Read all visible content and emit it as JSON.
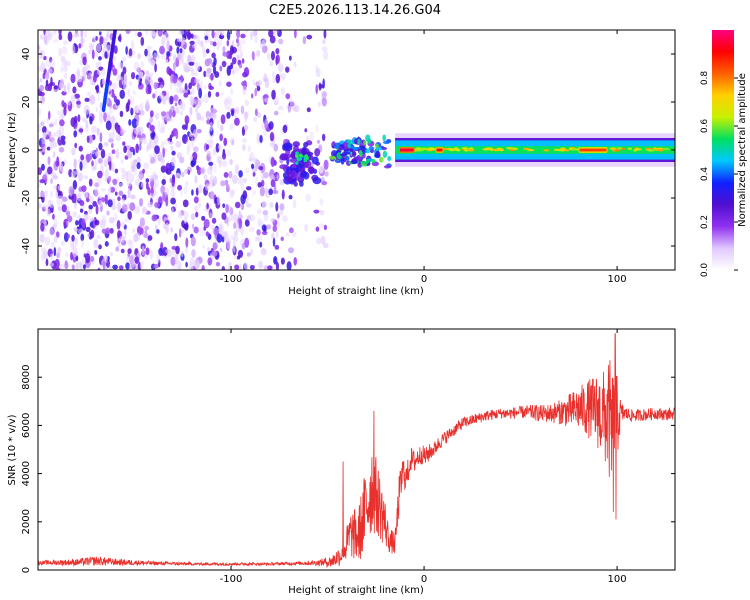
{
  "figure": {
    "title": "C2E5.2026.113.14.26.G04"
  },
  "chart_data": [
    {
      "type": "heatmap",
      "id": "spectrogram",
      "xlabel": "Height of straight line (km)",
      "ylabel": "Frequency (Hz)",
      "xlim": [
        -200,
        130
      ],
      "ylim": [
        -50,
        50
      ],
      "xticks": [
        -100,
        0,
        100
      ],
      "xtick_labels": [
        "-100",
        "0",
        "100"
      ],
      "yticks": [
        -40,
        -20,
        0,
        20,
        40
      ],
      "ytick_labels": [
        "-40",
        "-20",
        "0",
        "20",
        "40"
      ],
      "colorbar": {
        "label": "Normalized spectral amplitude",
        "range": [
          0,
          1
        ],
        "ticks": [
          0.0,
          0.2,
          0.4,
          0.6,
          0.8
        ],
        "tick_labels": [
          "0.0",
          "0.2",
          "0.4",
          "0.6",
          "0.8"
        ],
        "colors": [
          "#ffffff",
          "#e0c8ff",
          "#9030f0",
          "#5010d0",
          "#1020ff",
          "#00c8ff",
          "#00e060",
          "#c8f000",
          "#ffd000",
          "#ff6000",
          "#ff0000",
          "#ff0080"
        ]
      },
      "regions": [
        {
          "name": "noise-scatter",
          "x_range": [
            -200,
            -50
          ],
          "freq_range": [
            -50,
            50
          ],
          "amplitude": 0.15
        },
        {
          "name": "noise-gap",
          "x_range": [
            -65,
            -56
          ],
          "freq_range": [
            -50,
            50
          ],
          "amplitude": 0.02
        },
        {
          "name": "streak",
          "x_range": [
            -166,
            -160
          ],
          "freq_range": [
            17,
            50
          ],
          "amplitude": 0.3
        },
        {
          "name": "onset-blob",
          "x_range": [
            -73,
            -55
          ],
          "freq_range": [
            -15,
            3
          ],
          "amplitude": 0.35
        },
        {
          "name": "onset-cluster",
          "x_range": [
            -48,
            -18
          ],
          "freq_range": [
            -6,
            10
          ],
          "amplitude": 0.45
        },
        {
          "name": "carrier-band",
          "x_range": [
            -15,
            130
          ],
          "freq_range": [
            -4,
            4
          ],
          "amplitude": 0.55
        },
        {
          "name": "carrier-peak-1",
          "x_range": [
            -13,
            -5
          ],
          "freq_range": [
            -1,
            1
          ],
          "amplitude": 0.95
        },
        {
          "name": "carrier-peak-2",
          "x_range": [
            6,
            10
          ],
          "freq_range": [
            -1,
            1
          ],
          "amplitude": 0.9
        },
        {
          "name": "carrier-peak-3",
          "x_range": [
            80,
            95
          ],
          "freq_range": [
            -1,
            1
          ],
          "amplitude": 0.85
        }
      ]
    },
    {
      "type": "line",
      "id": "snr",
      "xlabel": "Height of straight line (km)",
      "ylabel": "SNR (10 * v/v)",
      "xlim": [
        -200,
        130
      ],
      "ylim": [
        0,
        10000
      ],
      "xticks": [
        -100,
        0,
        100
      ],
      "xtick_labels": [
        "-100",
        "0",
        "100"
      ],
      "yticks": [
        0,
        2000,
        4000,
        6000,
        8000
      ],
      "ytick_labels": [
        "0",
        "2000",
        "4000",
        "6000",
        "8000"
      ],
      "color": "#e8302c",
      "series": [
        {
          "name": "SNR",
          "x": [
            -200,
            -180,
            -170,
            -160,
            -140,
            -120,
            -100,
            -80,
            -65,
            -55,
            -48,
            -42,
            -38,
            -34,
            -30,
            -27,
            -24,
            -21,
            -18,
            -15,
            -13,
            -11,
            -9,
            -7,
            -5,
            -3,
            -1,
            1,
            3,
            5,
            8,
            11,
            14,
            17,
            20,
            24,
            28,
            32,
            36,
            40,
            45,
            50,
            55,
            60,
            65,
            70,
            75,
            80,
            85,
            90,
            93,
            96,
            98,
            100,
            102,
            104,
            108,
            115,
            120,
            125,
            130
          ],
          "mean": [
            300,
            320,
            380,
            330,
            280,
            250,
            250,
            250,
            280,
            300,
            350,
            700,
            1500,
            1400,
            2600,
            3500,
            2900,
            2200,
            1200,
            1100,
            3000,
            4100,
            3800,
            4600,
            4500,
            4700,
            4800,
            4700,
            4900,
            5000,
            5300,
            5500,
            5700,
            5900,
            6100,
            6200,
            6300,
            6400,
            6450,
            6500,
            6500,
            6550,
            6550,
            6500,
            6500,
            6550,
            6600,
            6700,
            6700,
            6600,
            6400,
            6200,
            5200,
            6300,
            6500,
            6500,
            6400,
            6450,
            6500,
            6450,
            6500
          ],
          "amplitude": [
            80,
            140,
            200,
            140,
            80,
            60,
            60,
            60,
            70,
            120,
            250,
            500,
            1000,
            1200,
            1800,
            2000,
            1500,
            1200,
            500,
            500,
            900,
            700,
            600,
            500,
            500,
            450,
            400,
            400,
            350,
            300,
            300,
            280,
            250,
            250,
            250,
            230,
            220,
            220,
            220,
            220,
            250,
            250,
            300,
            350,
            400,
            500,
            700,
            900,
            1200,
            1600,
            1900,
            2600,
            3200,
            1800,
            500,
            300,
            250,
            250,
            250,
            250,
            250
          ],
          "peaks": [
            {
              "x": 99,
              "y": 9800
            },
            {
              "x": 99.5,
              "y": 2100
            },
            {
              "x": -26,
              "y": 6600
            },
            {
              "x": -42,
              "y": 4500
            }
          ]
        }
      ]
    }
  ]
}
